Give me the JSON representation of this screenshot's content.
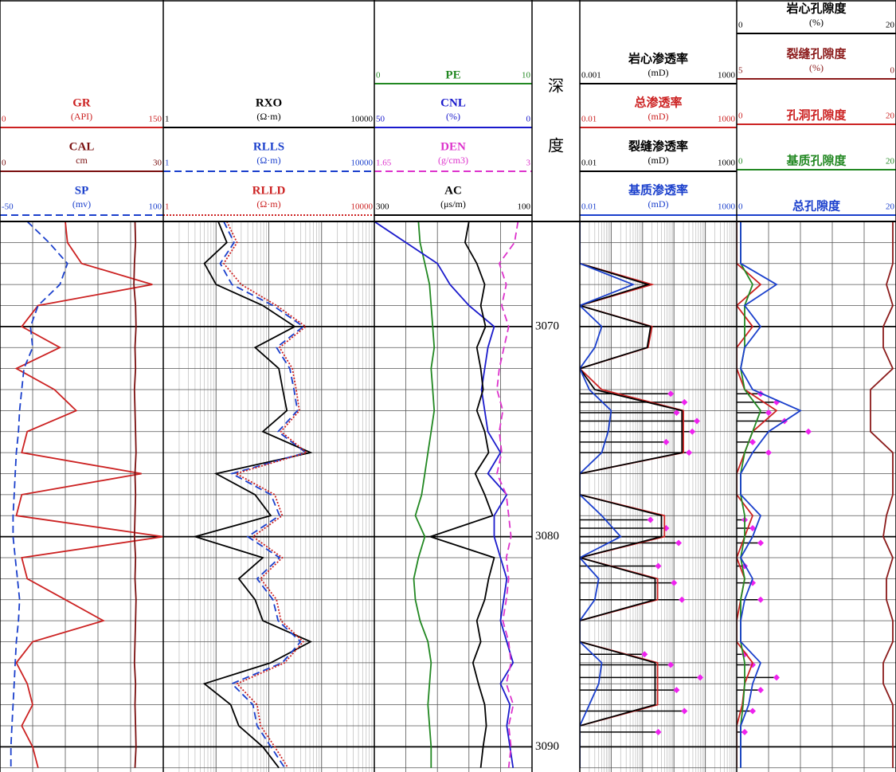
{
  "chart_data": {
    "type": "well-log",
    "depth": [
      3065,
      3066,
      3067,
      3068,
      3069,
      3070,
      3071,
      3072,
      3073,
      3074,
      3075,
      3076,
      3077,
      3078,
      3079,
      3080,
      3081,
      3082,
      3083,
      3084,
      3085,
      3086,
      3087,
      3088,
      3089,
      3090,
      3091
    ],
    "ylim": [
      3065,
      3091.2
    ],
    "yticks": [
      3070,
      3080,
      3090
    ],
    "minor_yticks": [
      3066,
      3067,
      3068,
      3069,
      3071,
      3072,
      3073,
      3074,
      3075,
      3076,
      3077,
      3078,
      3079,
      3081,
      3082,
      3083,
      3084,
      3085,
      3086,
      3087,
      3088,
      3089,
      3091
    ],
    "tracks": [
      {
        "log": false,
        "curves": [
          {
            "name": "GR",
            "unit": "(API)",
            "scale": [
              0,
              150
            ],
            "color": "#cc2222",
            "style": "solid",
            "values": [
              60,
              62,
              75,
              140,
              35,
              20,
              55,
              15,
              50,
              70,
              25,
              20,
              130,
              20,
              15,
              150,
              20,
              25,
              60,
              95,
              30,
              15,
              25,
              30,
              20,
              30,
              35
            ]
          },
          {
            "name": "CAL",
            "unit": "cm",
            "scale": [
              0,
              30
            ],
            "color": "#7a1010",
            "style": "solid",
            "values": [
              24.8,
              24.9,
              24.7,
              24.6,
              24.9,
              25,
              24.8,
              24.9,
              24.7,
              24.8,
              24.9,
              25,
              24.8,
              24.9,
              24.8,
              24.7,
              24.9,
              24.8,
              25,
              24.9,
              24.8,
              24.7,
              24.9,
              24.8,
              24.9,
              25,
              24.8
            ]
          },
          {
            "name": "SP",
            "unit": "(mv)",
            "scale": [
              -50,
              100
            ],
            "color": "#1a3fcc",
            "style": "dashed",
            "values": [
              -25,
              -5,
              12,
              5,
              -15,
              -22,
              -20,
              -28,
              -30,
              -32,
              -33,
              -35,
              -36,
              -37,
              -38,
              -38,
              -36,
              -34,
              -32,
              -33,
              -35,
              -36,
              -37,
              -38,
              -39,
              -40,
              -40
            ]
          }
        ]
      },
      {
        "log": true,
        "curves": [
          {
            "name": "RXO",
            "unit": "(Ω·m)",
            "scale": [
              1,
              10000
            ],
            "color": "#000000",
            "style": "solid",
            "values": [
              11,
              16,
              6,
              10,
              77,
              310,
              55,
              155,
              184,
              220,
              77,
              620,
              10,
              55,
              109,
              4,
              77,
              27,
              55,
              77,
              620,
              109,
              6,
              19,
              27,
              77,
              155
            ]
          },
          {
            "name": "RLLS",
            "unit": "(Ω·m)",
            "scale": [
              1,
              10000
            ],
            "color": "#1a3fcc",
            "style": "dashed",
            "values": [
              14,
              22,
              12,
              20,
              120,
              450,
              140,
              250,
              300,
              350,
              150,
              500,
              20,
              110,
              160,
              40,
              160,
              60,
              120,
              150,
              400,
              180,
              20,
              50,
              60,
              110,
              200
            ]
          },
          {
            "name": "RLLD",
            "unit": "(Ω·m)",
            "scale": [
              1,
              10000
            ],
            "color": "#cc2222",
            "style": "dotted",
            "values": [
              16,
              25,
              14,
              30,
              140,
              500,
              160,
              280,
              330,
              380,
              170,
              520,
              24,
              130,
              180,
              50,
              180,
              70,
              140,
              170,
              450,
              200,
              25,
              60,
              70,
              130,
              230
            ]
          }
        ]
      },
      {
        "log": false,
        "curves": [
          {
            "name": "PE",
            "scale": [
              0,
              10
            ],
            "color": "#228822",
            "style": "solid",
            "values": [
              2.8,
              2.9,
              3.2,
              3.5,
              3.6,
              3.7,
              3.8,
              3.6,
              3.7,
              3.8,
              3.6,
              3.4,
              3.2,
              3.0,
              2.6,
              3.2,
              2.8,
              2.5,
              2.6,
              2.9,
              3.4,
              3.6,
              3.5,
              3.4,
              3.5,
              3.6,
              3.6
            ]
          },
          {
            "name": "CNL",
            "unit": "(%)",
            "scale": [
              50,
              0
            ],
            "color": "#1a1acc",
            "style": "solid",
            "values": [
              50,
              40,
              30,
              26,
              20,
              12,
              14,
              15,
              16,
              15,
              14,
              10,
              14,
              8,
              12,
              12,
              10,
              8,
              9,
              10,
              8,
              6,
              10,
              7,
              8,
              7,
              6
            ]
          },
          {
            "name": "DEN",
            "unit": "(g/cm3)",
            "scale": [
              1.65,
              3
            ],
            "color": "#dd33cc",
            "style": "dashed",
            "values": [
              2.88,
              2.85,
              2.72,
              2.78,
              2.74,
              2.8,
              2.76,
              2.72,
              2.7,
              2.75,
              2.72,
              2.74,
              2.7,
              2.78,
              2.8,
              2.82,
              2.78,
              2.8,
              2.78,
              2.75,
              2.8,
              2.82,
              2.78,
              2.84,
              2.8,
              2.82,
              2.8
            ]
          },
          {
            "name": "AC",
            "unit": "(μs/m)",
            "scale": [
              300,
              100
            ],
            "color": "#000000",
            "style": "solid",
            "values": [
              180,
              185,
              170,
              160,
              165,
              159,
              170,
              165,
              162,
              170,
              160,
              155,
              172,
              160,
              150,
              229,
              148,
              155,
              160,
              170,
              165,
              175,
              168,
              160,
              158,
              162,
              165
            ]
          }
        ]
      },
      {
        "labels": [
          "深",
          "度"
        ]
      },
      {
        "log": true,
        "curves": [
          {
            "name": "岩心渗透率",
            "unit": "(mD)",
            "scale": [
              0.001,
              1000
            ],
            "color": "#000000",
            "marker_color": "#ee22ee",
            "depth": [
              3073.2,
              3073.6,
              3074.1,
              3074.5,
              3075,
              3075.5,
              3076,
              3079.2,
              3079.6,
              3080.3,
              3081.4,
              3082.2,
              3083,
              3085.6,
              3086.1,
              3086.7,
              3087.3,
              3088.3,
              3089.3
            ],
            "values": [
              3,
              10,
              5,
              30,
              20,
              2,
              15,
              0.5,
              2,
              6,
              1,
              4,
              8,
              0.3,
              3,
              40,
              5,
              10,
              1
            ]
          },
          {
            "name": "总渗透率",
            "unit": "(mD)",
            "scale": [
              0.01,
              1000
            ],
            "color": "#cc2222",
            "style": "solid",
            "values": [
              0.01,
              0.01,
              0.01,
              2,
              0.01,
              2,
              1.5,
              0.01,
              0.05,
              20,
              20,
              20,
              0.01,
              0.01,
              5,
              5,
              0.01,
              3,
              3,
              0.01,
              0.01,
              3,
              3,
              3,
              0.01,
              0.01,
              0.01
            ]
          },
          {
            "name": "裂缝渗透率",
            "unit": "(mD)",
            "scale": [
              0.01,
              1000
            ],
            "color": "#000000",
            "style": "solid",
            "values": [
              0.01,
              0.01,
              0.01,
              1.5,
              0.01,
              1.8,
              1.4,
              0.01,
              0.03,
              18,
              18,
              18,
              0.01,
              0.01,
              4,
              4,
              0.01,
              2.5,
              2.5,
              0.01,
              0.01,
              2.5,
              2.5,
              2.5,
              0.01,
              0.01,
              0.01
            ]
          },
          {
            "name": "基质渗透率",
            "unit": "(mD)",
            "scale": [
              0.01,
              1000
            ],
            "color": "#1a3fcc",
            "style": "solid",
            "values": [
              0.01,
              0.01,
              0.01,
              0.5,
              0.01,
              0.05,
              0.03,
              0.01,
              0.02,
              0.1,
              0.08,
              0.05,
              0.01,
              0.01,
              0.05,
              0.2,
              0.01,
              0.04,
              0.03,
              0.01,
              0.01,
              0.05,
              0.04,
              0.02,
              0.01,
              0.01,
              0.01
            ]
          }
        ]
      },
      {
        "log": false,
        "curves": [
          {
            "name": "岩心孔隙度",
            "unit": "(%)",
            "scale": [
              0,
              20
            ],
            "color": "#000000",
            "marker_color": "#ee22ee",
            "depth": [
              3073.2,
              3073.6,
              3074.1,
              3074.5,
              3075,
              3075.5,
              3076,
              3079.2,
              3079.6,
              3080.3,
              3081.4,
              3082.2,
              3083,
              3085.6,
              3086.1,
              3086.7,
              3087.3,
              3088.3,
              3089.3
            ],
            "values": [
              3,
              5,
              4,
              6,
              9,
              2,
              4,
              1,
              2,
              3,
              1,
              2,
              3,
              1,
              2,
              5,
              3,
              2,
              1
            ]
          },
          {
            "name": "裂缝孔隙度",
            "unit": "(%)",
            "scale": [
              5,
              0
            ],
            "color": "#8b1a1a",
            "style": "solid",
            "values": [
              0.1,
              0.1,
              0.1,
              0.3,
              0.1,
              0.4,
              0.4,
              0.1,
              0.8,
              0.8,
              0.8,
              0.1,
              0.1,
              0.1,
              0.3,
              0.4,
              0.1,
              0.3,
              0.3,
              0.1,
              0.1,
              0.4,
              0.4,
              0.1,
              0.1,
              0.1,
              0.1
            ]
          },
          {
            "name": "孔洞孔隙度",
            "scale": [
              0,
              20
            ],
            "color": "#cc2222",
            "style": "solid",
            "values": [
              0,
              0,
              0,
              3,
              0,
              2,
              0,
              0,
              1,
              5,
              2,
              1,
              0,
              0,
              2,
              1,
              0,
              1,
              0.5,
              0,
              0,
              2,
              1,
              0.7,
              0,
              0,
              0
            ]
          },
          {
            "name": "基质孔隙度",
            "scale": [
              0,
              20
            ],
            "color": "#228822",
            "style": "solid",
            "values": [
              0.5,
              0.5,
              0.5,
              2,
              1,
              1,
              1,
              0.5,
              1,
              3,
              2,
              1,
              0.5,
              0.5,
              1,
              1,
              0.5,
              1,
              0.5,
              0.5,
              0.5,
              1,
              1,
              0.8,
              0.5,
              0.5,
              0.5
            ]
          },
          {
            "name": "总孔隙度",
            "scale": [
              0,
              20
            ],
            "color": "#1a3fcc",
            "style": "solid",
            "values": [
              0.5,
              0.5,
              0.5,
              5,
              1,
              3,
              1,
              0.5,
              2,
              8,
              4,
              2,
              0.5,
              0.5,
              3,
              2,
              0.5,
              2,
              1,
              0.5,
              0.5,
              3,
              2,
              1.5,
              0.5,
              0.5,
              0.5
            ]
          }
        ]
      }
    ]
  }
}
